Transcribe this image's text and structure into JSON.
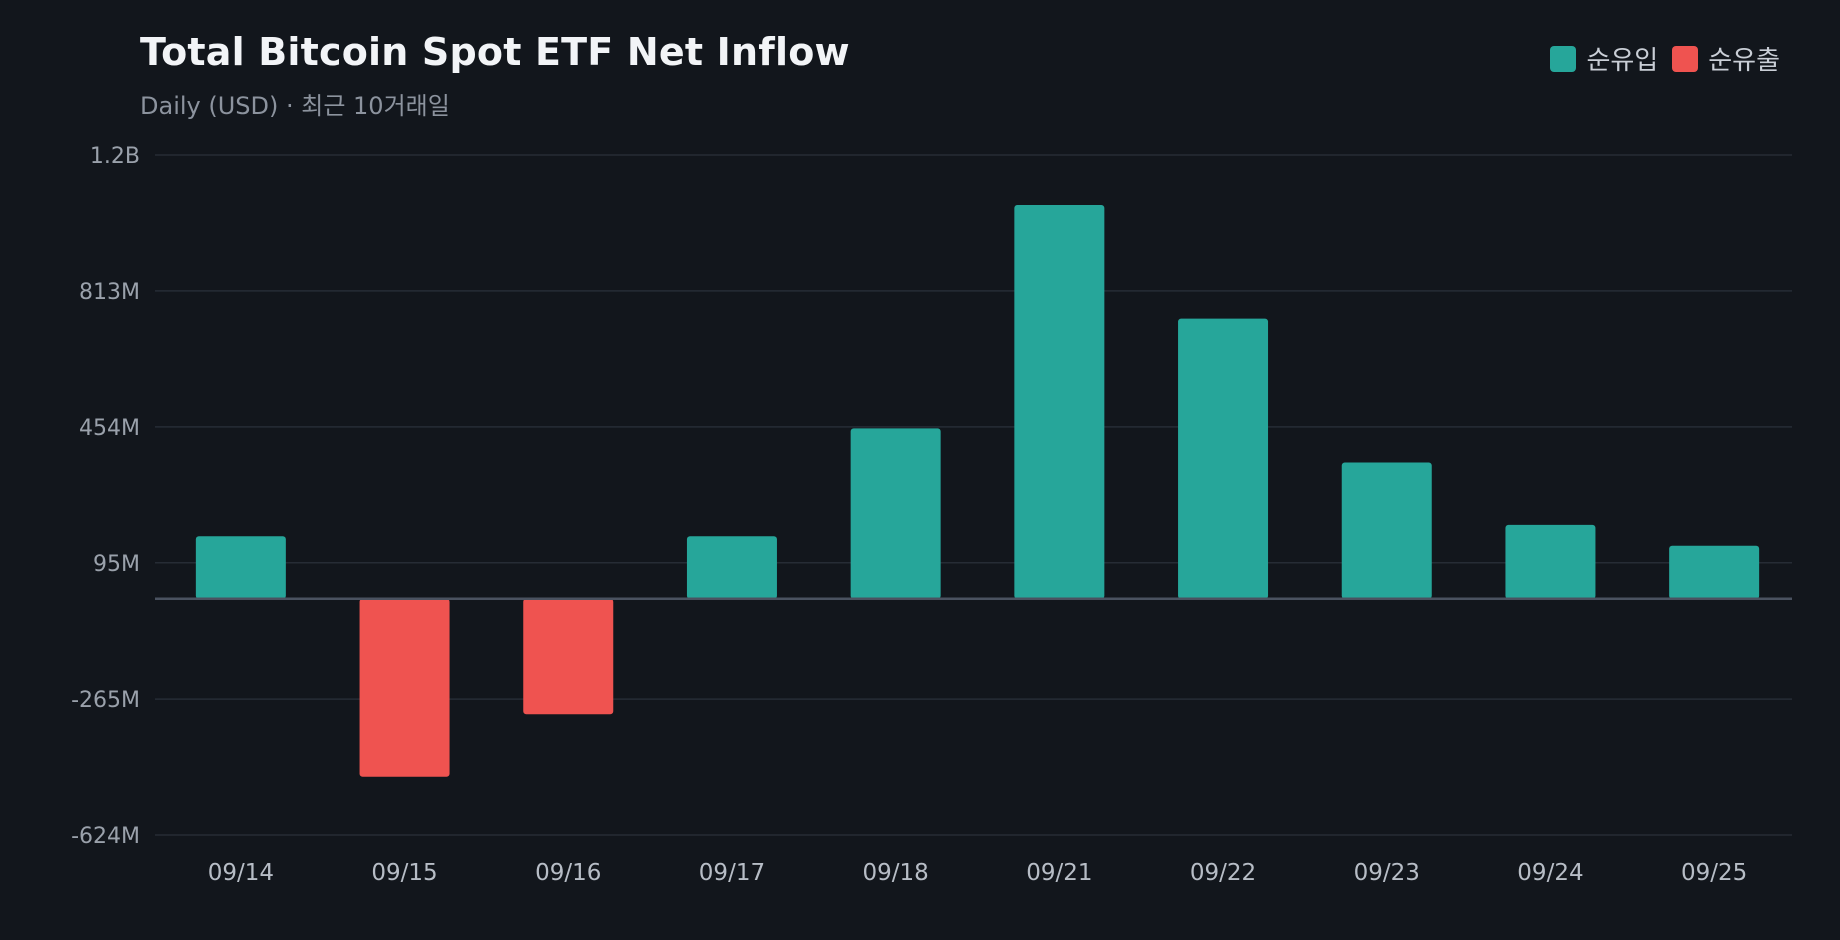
{
  "header": {
    "title": "Total Bitcoin Spot ETF Net Inflow",
    "subtitle": "Daily (USD) · 최근 10거래일"
  },
  "legend": {
    "inflow_label": "순유입",
    "outflow_label": "순유출"
  },
  "colors": {
    "background": "#12161c",
    "inflow": "#26a69a",
    "outflow": "#ef5350",
    "grid": "#262c35",
    "zero_line": "#4a5260"
  },
  "chart_data": {
    "type": "bar",
    "categories": [
      "09/14",
      "09/15",
      "09/16",
      "09/17",
      "09/18",
      "09/21",
      "09/22",
      "09/23",
      "09/24",
      "09/25"
    ],
    "values": [
      165,
      -470,
      -305,
      165,
      450,
      1040,
      740,
      360,
      195,
      140
    ],
    "units": "USD millions",
    "ylim": [
      -624,
      1172
    ],
    "y_ticks": [
      1172,
      813,
      454,
      95,
      -265,
      -624
    ],
    "y_tick_labels": [
      "1.2B",
      "813M",
      "454M",
      "95M",
      "-265M",
      "-624M"
    ],
    "legend_position": "top-right",
    "grid": true
  }
}
